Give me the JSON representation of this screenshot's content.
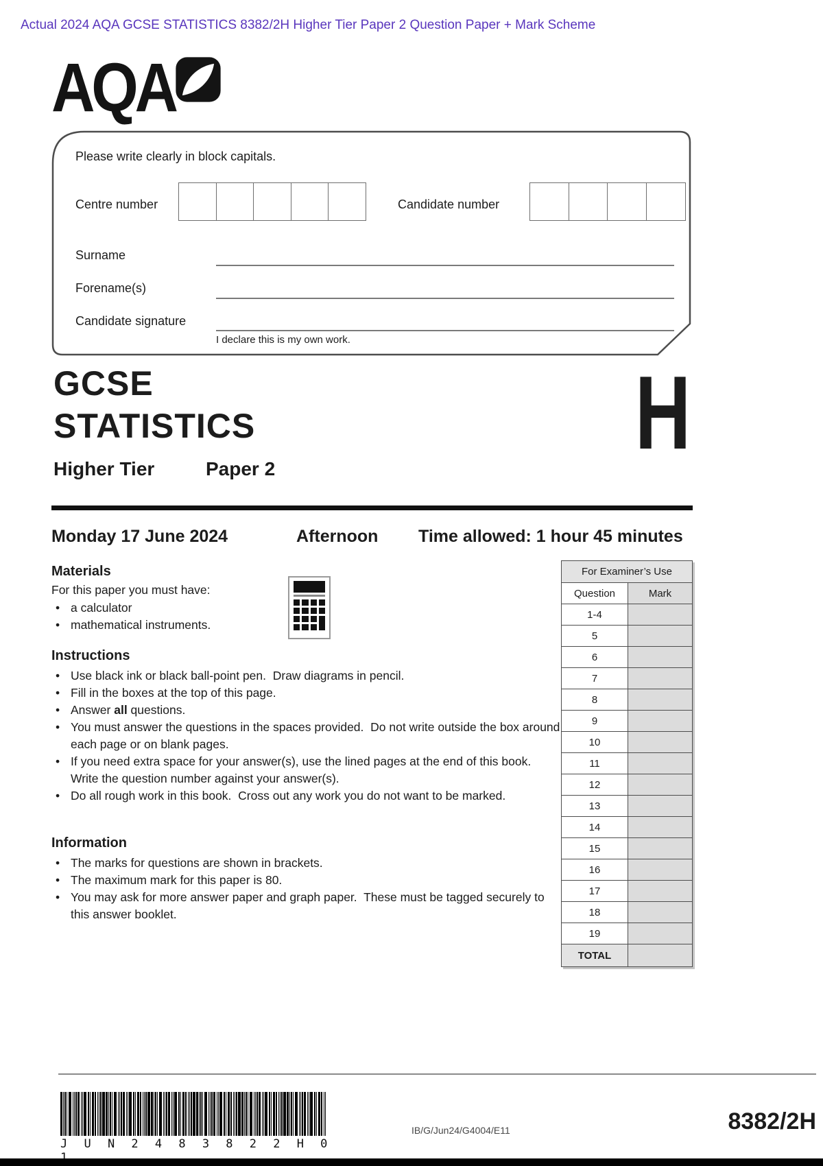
{
  "page": {
    "top_note": "Actual 2024 AQA GCSE STATISTICS 8382/2H Higher Tier Paper 2 Question Paper + Mark Scheme",
    "accent_color": "#5936bd"
  },
  "logo": {
    "text": "AQA"
  },
  "candidate_box": {
    "instruction": "Please write clearly in block capitals.",
    "centre_number_label": "Centre number",
    "centre_number_boxes": 5,
    "candidate_number_label": "Candidate number",
    "candidate_number_boxes": 4,
    "surname_label": "Surname",
    "forename_label": "Forename(s)",
    "signature_label": "Candidate signature",
    "declaration": "I declare this is my own work."
  },
  "title": {
    "qualification": "GCSE",
    "subject": "STATISTICS",
    "tier": "Higher Tier",
    "paper": "Paper 2",
    "tier_letter": "H"
  },
  "session": {
    "date": "Monday 17 June 2024",
    "time_of_day": "Afternoon",
    "time_allowed": "Time allowed: 1 hour 45 minutes"
  },
  "materials": {
    "heading": "Materials",
    "intro": "For this paper you must have:",
    "items": [
      "a calculator",
      "mathematical instruments."
    ]
  },
  "instructions": {
    "heading": "Instructions",
    "items": [
      {
        "segments": [
          {
            "text": "Use black ink or black ball-point pen.  Draw diagrams in pencil."
          }
        ]
      },
      {
        "segments": [
          {
            "text": "Fill in the boxes at the top of this page."
          }
        ]
      },
      {
        "segments": [
          {
            "text": "Answer "
          },
          {
            "text": "all",
            "bold": true
          },
          {
            "text": " questions."
          }
        ]
      },
      {
        "segments": [
          {
            "text": "You must answer the questions in the spaces provided.  Do not write outside the box around each page or on blank pages."
          }
        ]
      },
      {
        "segments": [
          {
            "text": "If you need extra space for your answer(s), use the lined pages at the end of this book.  Write the question number against your answer(s)."
          }
        ]
      },
      {
        "segments": [
          {
            "text": "Do all rough work in this book.  Cross out any work you do not want to be marked."
          }
        ]
      }
    ]
  },
  "information": {
    "heading": "Information",
    "items": [
      "The marks for questions are shown in brackets.",
      "The maximum mark for this paper is 80.",
      "You may ask for more answer paper and graph paper.  These must be tagged securely to this answer booklet."
    ]
  },
  "examiner_table": {
    "title": "For Examiner’s Use",
    "col_question": "Question",
    "col_mark": "Mark",
    "rows": [
      "1-4",
      "5",
      "6",
      "7",
      "8",
      "9",
      "10",
      "11",
      "12",
      "13",
      "14",
      "15",
      "16",
      "17",
      "18",
      "19"
    ],
    "total_label": "TOTAL"
  },
  "footer": {
    "barcode_text": "J U N 2 4 8 3 8 2 2 H 0 1",
    "ref_code": "IB/G/Jun24/G4004/E11",
    "paper_code": "8382/2H"
  }
}
